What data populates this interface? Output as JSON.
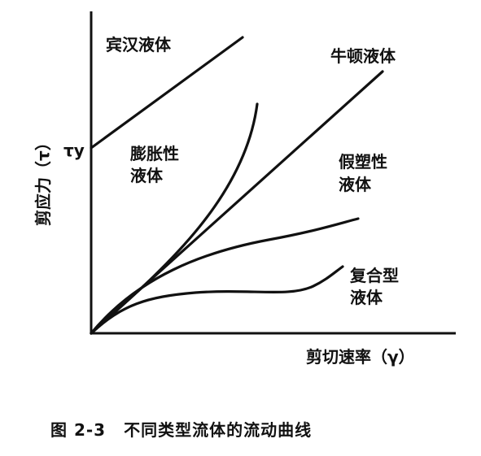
{
  "chart_data": {
    "type": "line",
    "title": "",
    "xlabel": "剪切速率（γ）",
    "ylabel": "剪应力（τ）",
    "grid": false,
    "legend": "none",
    "yield_stress_label": "τy",
    "series": [
      {
        "name": "宾汉液体",
        "label_lines": [
          "宾汉液体"
        ],
        "kind": "bingham"
      },
      {
        "name": "牛顿液体",
        "label_lines": [
          "牛顿液体"
        ],
        "kind": "newtonian"
      },
      {
        "name": "膨胀性液体",
        "label_lines": [
          "膨胀性",
          "液体"
        ],
        "kind": "dilatant"
      },
      {
        "name": "假塑性液体",
        "label_lines": [
          "假塑性",
          "液体"
        ],
        "kind": "pseudoplastic"
      },
      {
        "name": "复合型液体",
        "label_lines": [
          "复合型",
          "液体"
        ],
        "kind": "composite"
      }
    ]
  },
  "caption": {
    "figure_number": "图 2-3",
    "text": "不同类型流体的流动曲线"
  }
}
